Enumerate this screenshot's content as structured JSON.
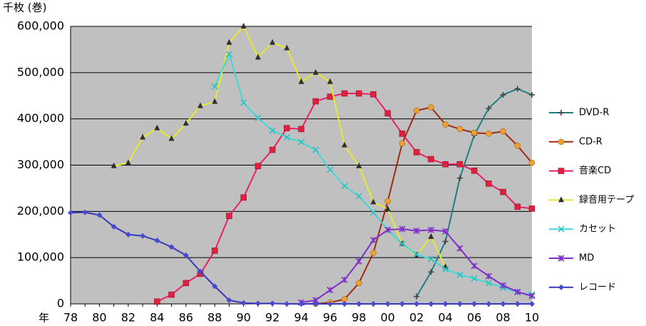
{
  "chart_data": {
    "type": "line",
    "y_label": "千枚 (巻)",
    "x_label": "年",
    "categories": [
      "78",
      null,
      "80",
      null,
      "82",
      null,
      "84",
      null,
      "86",
      null,
      "88",
      null,
      "90",
      null,
      "92",
      null,
      "94",
      null,
      "96",
      null,
      "98",
      null,
      "00",
      null,
      "02",
      null,
      "04",
      null,
      "06",
      null,
      "08",
      null,
      "10"
    ],
    "ylim": [
      0,
      600000
    ],
    "yticks": [
      0,
      {
        "value": 100000,
        "label": "100,000"
      },
      {
        "value": 200000,
        "label": "200,000"
      },
      {
        "value": 300000,
        "label": "300,000"
      },
      {
        "value": 400000,
        "label": "400,000"
      },
      {
        "value": 500000,
        "label": "500,000"
      },
      {
        "value": 600000,
        "label": "600,000"
      }
    ],
    "grid": true,
    "legend": "right",
    "series": [
      {
        "name": "DVD-R",
        "color": "#1f7f7f",
        "marker": "plus",
        "marker_color": "#404040",
        "values": [
          null,
          null,
          null,
          null,
          null,
          null,
          null,
          null,
          null,
          null,
          null,
          null,
          null,
          null,
          null,
          null,
          null,
          null,
          null,
          null,
          null,
          null,
          null,
          null,
          16000,
          69000,
          135000,
          272000,
          365000,
          423000,
          452000,
          465000,
          452000
        ]
      },
      {
        "name": "CD-R",
        "color": "#a02a10",
        "marker": "circle",
        "marker_color": "#f0a030",
        "values": [
          null,
          null,
          null,
          null,
          null,
          null,
          null,
          null,
          null,
          null,
          null,
          null,
          null,
          null,
          null,
          null,
          null,
          0,
          3000,
          10000,
          45000,
          110000,
          222000,
          347000,
          418000,
          425000,
          388000,
          378000,
          370000,
          368000,
          373000,
          342000,
          305000
        ]
      },
      {
        "name": "音楽CD",
        "color": "#e8206a",
        "marker": "square",
        "marker_color": "#e02040",
        "values": [
          null,
          null,
          null,
          null,
          null,
          null,
          5000,
          20000,
          45000,
          65000,
          115000,
          190000,
          230000,
          298000,
          333000,
          380000,
          378000,
          438000,
          448000,
          455000,
          455000,
          453000,
          412000,
          368000,
          328000,
          313000,
          302000,
          302000,
          288000,
          260000,
          242000,
          210000,
          206000
        ]
      },
      {
        "name": "録音用テープ",
        "color": "#e8e830",
        "marker": "triangle",
        "marker_color": "#303030",
        "values": [
          null,
          null,
          null,
          298000,
          305000,
          360000,
          380000,
          357000,
          390000,
          428000,
          437000,
          565000,
          600000,
          533000,
          565000,
          553000,
          480000,
          500000,
          480000,
          343000,
          298000,
          220000,
          205000,
          130000,
          105000,
          145000,
          80000,
          null,
          null,
          null,
          null,
          null,
          null
        ]
      },
      {
        "name": "カセット",
        "color": "#40d8d8",
        "marker": "x",
        "marker_color": "#30c0c0",
        "values": [
          null,
          null,
          null,
          null,
          null,
          null,
          null,
          null,
          null,
          null,
          470000,
          540000,
          435000,
          402000,
          375000,
          360000,
          350000,
          333000,
          290000,
          255000,
          233000,
          198000,
          160000,
          130000,
          107000,
          97000,
          75000,
          63000,
          55000,
          45000,
          35000,
          25000,
          20000
        ]
      },
      {
        "name": "MD",
        "color": "#8030c8",
        "marker": "asterisk",
        "marker_color": "#8030c8",
        "values": [
          null,
          null,
          null,
          null,
          null,
          null,
          null,
          null,
          null,
          null,
          null,
          null,
          null,
          null,
          null,
          null,
          3000,
          8000,
          30000,
          52000,
          92000,
          138000,
          160000,
          162000,
          158000,
          160000,
          157000,
          120000,
          82000,
          60000,
          40000,
          26000,
          17000
        ]
      },
      {
        "name": "レコード",
        "color": "#3838b8",
        "marker": "diamond",
        "marker_color": "#4848d0",
        "values": [
          197000,
          198000,
          192000,
          167000,
          150000,
          147000,
          137000,
          123000,
          105000,
          70000,
          38000,
          8000,
          2000,
          1000,
          1000,
          0,
          0,
          0,
          0,
          0,
          0,
          0,
          0,
          0,
          0,
          0,
          0,
          0,
          0,
          0,
          0,
          0,
          0
        ]
      }
    ]
  }
}
